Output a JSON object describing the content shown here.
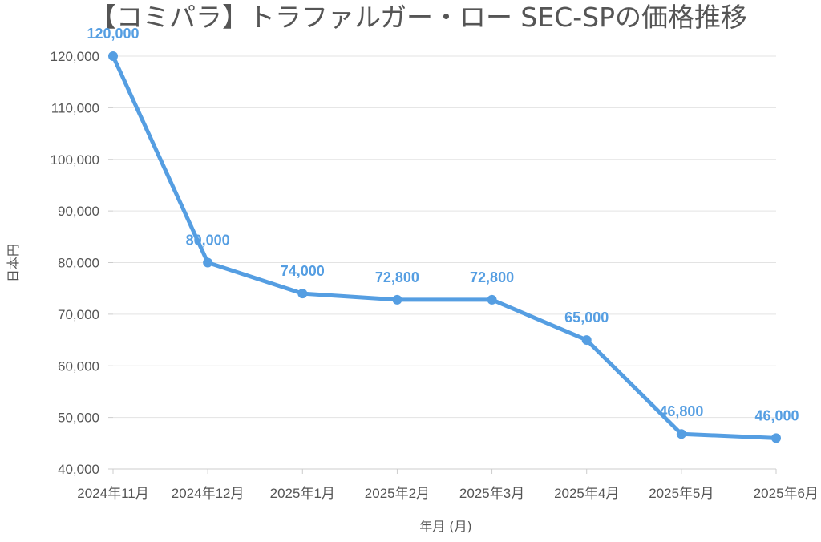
{
  "chart_data": {
    "type": "line",
    "title": "【コミパラ】トラファルガー・ロー SEC-SPの価格推移",
    "xlabel": "年月 (月)",
    "ylabel": "日本円",
    "categories": [
      "2024年11月",
      "2024年12月",
      "2025年1月",
      "2025年2月",
      "2025年3月",
      "2025年4月",
      "2025年5月",
      "2025年6月"
    ],
    "series": [
      {
        "values": [
          120000,
          80000,
          74000,
          72800,
          72800,
          65000,
          46800,
          46000
        ],
        "color": "#559ee2"
      }
    ],
    "data_labels": [
      "120,000",
      "80,000",
      "74,000",
      "72,800",
      "72,800",
      "65,000",
      "46,800",
      "46,000"
    ],
    "ylim": [
      40000,
      120000
    ],
    "yticks": [
      40000,
      50000,
      60000,
      70000,
      80000,
      90000,
      100000,
      110000,
      120000
    ],
    "ytick_labels": [
      "40,000",
      "50,000",
      "60,000",
      "70,000",
      "80,000",
      "90,000",
      "100,000",
      "110,000",
      "120,000"
    ],
    "grid": true,
    "legend": "none"
  }
}
